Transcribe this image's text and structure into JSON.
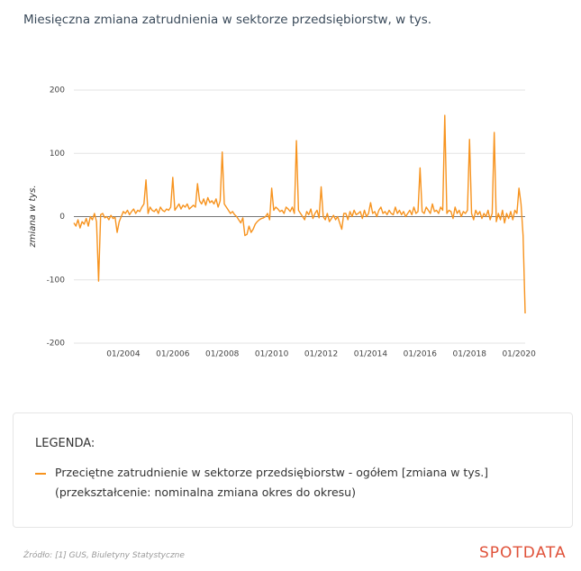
{
  "chart_data": {
    "type": "line",
    "title": "Miesięczna zmiana zatrudnienia w sektorze przedsiębiorstw, w tys.",
    "y_label": "zmiana w tys.",
    "legend_title": "LEGENDA:",
    "legend_note": "(przekształcenie: nominalna zmiana okres do okresu)",
    "source": "Źródło: [1] GUS, Biuletyny Statystyczne",
    "brand": "SPOTDATA",
    "ylim": [
      -200,
      200
    ],
    "yticks": [
      -200,
      -100,
      0,
      100,
      200
    ],
    "grid": true,
    "categories": [
      null,
      null,
      null,
      null,
      null,
      null,
      null,
      null,
      null,
      null,
      null,
      null,
      null,
      null,
      null,
      null,
      null,
      null,
      null,
      null,
      null,
      null,
      null,
      null,
      "01/2004",
      null,
      null,
      null,
      null,
      null,
      null,
      null,
      null,
      null,
      null,
      null,
      null,
      null,
      null,
      null,
      null,
      null,
      null,
      null,
      null,
      null,
      null,
      null,
      "01/2006",
      null,
      null,
      null,
      null,
      null,
      null,
      null,
      null,
      null,
      null,
      null,
      null,
      null,
      null,
      null,
      null,
      null,
      null,
      null,
      null,
      null,
      null,
      null,
      "01/2008",
      null,
      null,
      null,
      null,
      null,
      null,
      null,
      null,
      null,
      null,
      null,
      null,
      null,
      null,
      null,
      null,
      null,
      null,
      null,
      null,
      null,
      null,
      null,
      "01/2010",
      null,
      null,
      null,
      null,
      null,
      null,
      null,
      null,
      null,
      null,
      null,
      null,
      null,
      null,
      null,
      null,
      null,
      null,
      null,
      null,
      null,
      null,
      null,
      "01/2012",
      null,
      null,
      null,
      null,
      null,
      null,
      null,
      null,
      null,
      null,
      null,
      null,
      null,
      null,
      null,
      null,
      null,
      null,
      null,
      null,
      null,
      null,
      null,
      "01/2014",
      null,
      null,
      null,
      null,
      null,
      null,
      null,
      null,
      null,
      null,
      null,
      null,
      null,
      null,
      null,
      null,
      null,
      null,
      null,
      null,
      null,
      null,
      null,
      "01/2016",
      null,
      null,
      null,
      null,
      null,
      null,
      null,
      null,
      null,
      null,
      null,
      null,
      null,
      null,
      null,
      null,
      null,
      null,
      null,
      null,
      null,
      null,
      null,
      "01/2018",
      null,
      null,
      null,
      null,
      null,
      null,
      null,
      null,
      null,
      null,
      null,
      null,
      null,
      null,
      null,
      null,
      null,
      null,
      null,
      null,
      null,
      null,
      null,
      "01/2020",
      null,
      null,
      null
    ],
    "series": [
      {
        "name": "Przeciętne zatrudnienie w sektorze przedsiębiorstw - ogółem [zmiana w tys.]",
        "color": "#f7931e",
        "values": [
          -10,
          -15,
          -5,
          -18,
          -8,
          -12,
          -3,
          -15,
          0,
          -5,
          5,
          -8,
          -102,
          3,
          5,
          -2,
          0,
          -5,
          2,
          -3,
          -1,
          -25,
          -8,
          0,
          8,
          5,
          10,
          3,
          8,
          12,
          5,
          10,
          8,
          15,
          20,
          58,
          5,
          15,
          10,
          8,
          12,
          5,
          15,
          10,
          8,
          12,
          10,
          15,
          62,
          10,
          15,
          20,
          12,
          18,
          15,
          20,
          12,
          15,
          18,
          15,
          52,
          25,
          20,
          28,
          18,
          30,
          22,
          25,
          20,
          28,
          15,
          25,
          102,
          20,
          15,
          10,
          5,
          8,
          3,
          0,
          -5,
          -10,
          -2,
          -30,
          -28,
          -15,
          -25,
          -20,
          -12,
          -8,
          -5,
          -3,
          -2,
          0,
          5,
          -5,
          45,
          10,
          15,
          12,
          8,
          10,
          5,
          15,
          12,
          8,
          15,
          5,
          120,
          10,
          5,
          0,
          -5,
          8,
          3,
          12,
          -3,
          5,
          10,
          -2,
          47,
          0,
          -5,
          5,
          -8,
          -3,
          2,
          -5,
          0,
          -10,
          -20,
          5,
          5,
          -5,
          8,
          0,
          10,
          3,
          5,
          8,
          -3,
          10,
          0,
          5,
          22,
          5,
          8,
          0,
          10,
          15,
          5,
          8,
          3,
          10,
          5,
          3,
          15,
          5,
          10,
          3,
          8,
          0,
          5,
          10,
          3,
          15,
          5,
          8,
          77,
          8,
          5,
          15,
          10,
          5,
          20,
          8,
          10,
          5,
          15,
          10,
          160,
          5,
          10,
          8,
          -3,
          15,
          5,
          10,
          0,
          8,
          5,
          10,
          122,
          5,
          -5,
          10,
          3,
          8,
          -3,
          5,
          0,
          10,
          -5,
          5,
          133,
          -8,
          5,
          -5,
          10,
          -10,
          5,
          -3,
          8,
          -5,
          10,
          5,
          45,
          20,
          -30,
          -153
        ]
      }
    ]
  }
}
